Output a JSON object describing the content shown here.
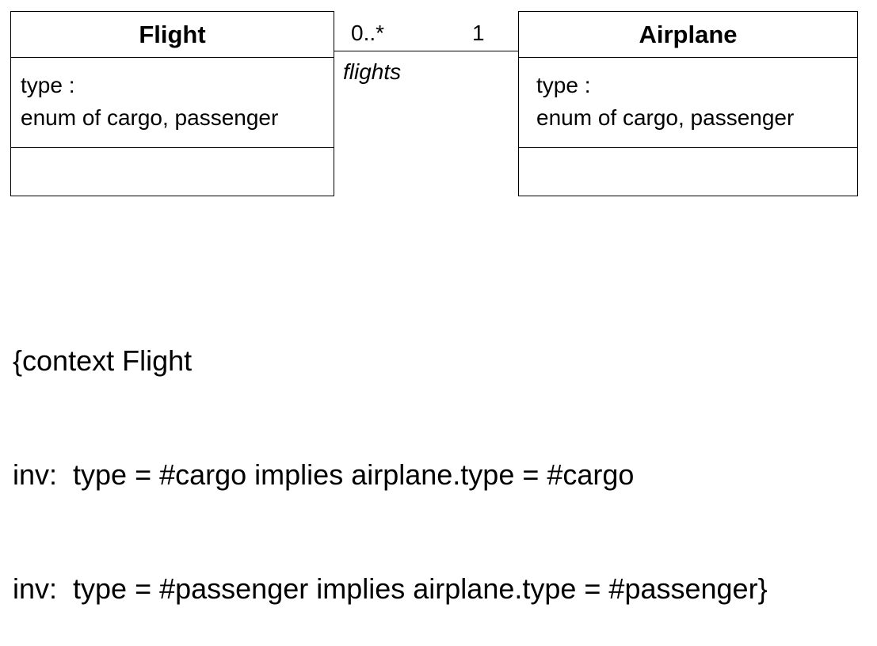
{
  "classes": {
    "flight": {
      "name": "Flight",
      "attributes": [
        "type :",
        "enum of cargo, passenger"
      ],
      "operations": []
    },
    "airplane": {
      "name": "Airplane",
      "attributes": [
        "type :",
        "enum of cargo, passenger"
      ],
      "operations": []
    }
  },
  "association": {
    "flight_multiplicity": "0..*",
    "airplane_multiplicity": "1",
    "role": "flights"
  },
  "constraint": {
    "lines": [
      "{context Flight",
      "inv:  type = #cargo implies airplane.type = #cargo",
      "inv:  type = #passenger implies airplane.type = #passenger}"
    ]
  }
}
